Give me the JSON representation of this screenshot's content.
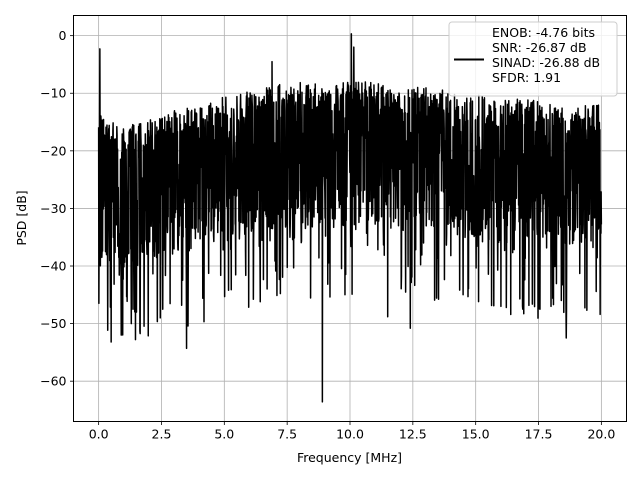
{
  "chart_data": {
    "type": "line",
    "xlabel": "Frequency [MHz]",
    "ylabel": "PSD [dB]",
    "xlim": [
      -1.0,
      21.0
    ],
    "ylim": [
      -67.0,
      3.5
    ],
    "xticks": [
      0.0,
      2.5,
      5.0,
      7.5,
      10.0,
      12.5,
      15.0,
      17.5,
      20.0
    ],
    "xtick_labels": [
      "0.0",
      "2.5",
      "5.0",
      "7.5",
      "10.0",
      "12.5",
      "15.0",
      "17.5",
      "20.0"
    ],
    "yticks": [
      0,
      -10,
      -20,
      -30,
      -40,
      -50,
      -60
    ],
    "ytick_labels": [
      "0",
      "−10",
      "−20",
      "−30",
      "−40",
      "−50",
      "−60"
    ],
    "grid": true,
    "legend_position": "upper-right",
    "line_color": "#000000",
    "series": [
      {
        "name": "ENOB: -4.76 bits\nSNR: -26.87 dB\nSINAD: -26.88 dB\nSFDR: 1.91",
        "x_range": [
          0.0,
          20.0
        ],
        "n_points": 2048,
        "noise_floor_db": -26.9,
        "envelope_peaks": [
          [
            0.0,
            -12.5
          ],
          [
            0.5,
            -15
          ],
          [
            1.0,
            -15.5
          ],
          [
            2.0,
            -14.5
          ],
          [
            3.0,
            -13
          ],
          [
            4.0,
            -12
          ],
          [
            5.0,
            -10.5
          ],
          [
            6.0,
            -9.5
          ],
          [
            7.0,
            -8.5
          ],
          [
            8.0,
            -8
          ],
          [
            9.0,
            -8.5
          ],
          [
            10.0,
            -8
          ],
          [
            11.0,
            -8
          ],
          [
            12.0,
            -9
          ],
          [
            13.0,
            -9
          ],
          [
            14.0,
            -9.5
          ],
          [
            15.0,
            -10
          ],
          [
            16.0,
            -11
          ],
          [
            17.0,
            -11
          ],
          [
            18.0,
            -11.5
          ],
          [
            19.0,
            -12
          ],
          [
            20.0,
            -12
          ]
        ],
        "spikes": [
          {
            "x": 0.05,
            "y": -2.3
          },
          {
            "x": 10.05,
            "y": 0.3
          },
          {
            "x": 10.15,
            "y": -2.0
          },
          {
            "x": 6.9,
            "y": -4.5
          }
        ],
        "dips": [
          {
            "x": 0.5,
            "y": -53.2
          },
          {
            "x": 0.9,
            "y": -52.0
          },
          {
            "x": 1.5,
            "y": -48.0
          },
          {
            "x": 2.45,
            "y": -49.0
          },
          {
            "x": 3.5,
            "y": -54.3
          },
          {
            "x": 6.7,
            "y": -44.0
          },
          {
            "x": 8.9,
            "y": -63.6
          },
          {
            "x": 9.8,
            "y": -45.0
          },
          {
            "x": 11.5,
            "y": -48.8
          },
          {
            "x": 12.4,
            "y": -50.8
          },
          {
            "x": 14.5,
            "y": -45.0
          },
          {
            "x": 16.0,
            "y": -47.0
          },
          {
            "x": 18.0,
            "y": -47.0
          },
          {
            "x": 18.6,
            "y": -52.5
          }
        ]
      }
    ]
  }
}
